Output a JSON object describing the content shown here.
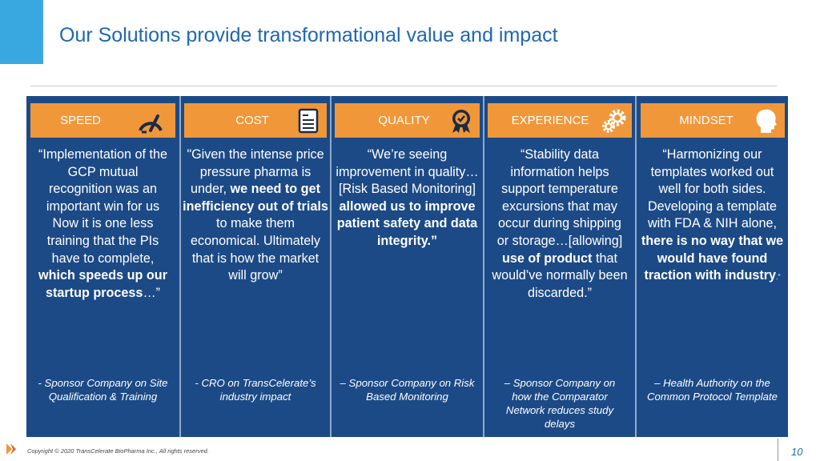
{
  "slide": {
    "title": "Our Solutions provide transformational value and impact",
    "copyright": "Copyright © 2020 TransCelerate BioPharma Inc., All rights reserved.",
    "page_number": "10"
  },
  "columns": [
    {
      "header": "SPEED",
      "icon": "speedometer-icon",
      "quote": [
        {
          "t": "“Implementation of the GCP mutual recognition was an important win for us Now it is one less training that the PIs have to complete, ",
          "b": false
        },
        {
          "t": "which speeds up our startup process",
          "b": true
        },
        {
          "t": "…”",
          "b": false
        }
      ],
      "source": "- Sponsor Company on Site Qualification & Training"
    },
    {
      "header": "COST",
      "icon": "document-icon",
      "quote": [
        {
          "t": "\"Given the intense price pressure pharma is under, ",
          "b": false
        },
        {
          "t": "we need to get inefficiency out of trials",
          "b": true
        },
        {
          "t": " to make them economical. Ultimately that is how the market will grow”",
          "b": false
        }
      ],
      "source": "- CRO on TransCelerate’s industry impact"
    },
    {
      "header": "QUALITY",
      "icon": "award-badge-icon",
      "quote": [
        {
          "t": "“We’re seeing improvement in quality…[Risk Based Monitoring] ",
          "b": false
        },
        {
          "t": "allowed us to improve patient safety and data integrity.”",
          "b": true
        }
      ],
      "source": "– Sponsor Company on Risk Based Monitoring"
    },
    {
      "header": "EXPERIENCE",
      "icon": "gears-icon",
      "quote": [
        {
          "t": "“Stability data information helps support temperature excursions that may occur during shipping or storage…[allowing] ",
          "b": false
        },
        {
          "t": "use of product",
          "b": true
        },
        {
          "t": " that would’ve normally been discarded.”",
          "b": false
        }
      ],
      "source": "– Sponsor Company on how the Comparator Network reduces study delays"
    },
    {
      "header": "MINDSET",
      "icon": "head-profile-icon",
      "quote": [
        {
          "t": "“Harmonizing our templates worked out well for both sides. Developing a template with FDA & NIH alone, ",
          "b": false
        },
        {
          "t": "there is no way that we would have found traction with industry",
          "b": true
        },
        {
          "t": ".”",
          "b": false,
          "small": true
        }
      ],
      "source": "– Health Authority on the Common Protocol Template"
    }
  ],
  "colors": {
    "accent_blue": "#3aa8e0",
    "title_blue": "#1f67b1",
    "panel_navy": "#1c4a86",
    "header_orange": "#f0973a"
  }
}
